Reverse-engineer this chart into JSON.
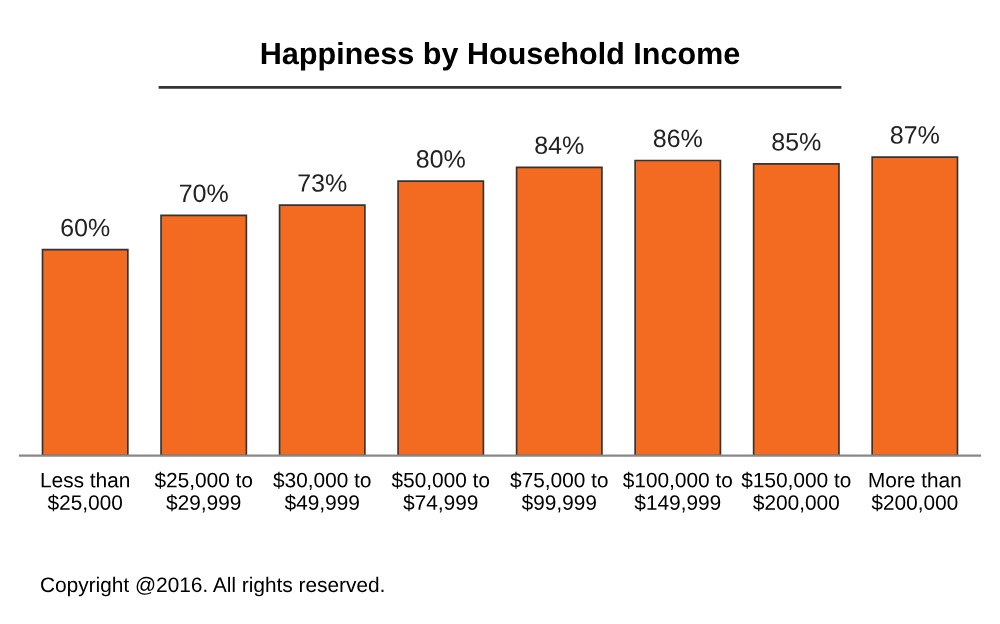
{
  "chart_data": {
    "type": "bar",
    "title": "Happiness by Household Income",
    "categories": [
      "Less than\n$25,000",
      "$25,000 to\n$29,999",
      "$30,000 to\n$49,999",
      "$50,000 to\n$74,999",
      "$75,000 to\n$99,999",
      "$100,000 to\n$149,999",
      "$150,000 to\n$200,000",
      "More than\n$200,000"
    ],
    "values": [
      60,
      70,
      73,
      80,
      84,
      86,
      85,
      87
    ],
    "value_labels": [
      "60%",
      "70%",
      "73%",
      "80%",
      "84%",
      "86%",
      "85%",
      "87%"
    ],
    "color": "#f26b21",
    "grid": false,
    "legend": false,
    "annotations": [
      "Copyright @2016. All rights reserved."
    ]
  }
}
